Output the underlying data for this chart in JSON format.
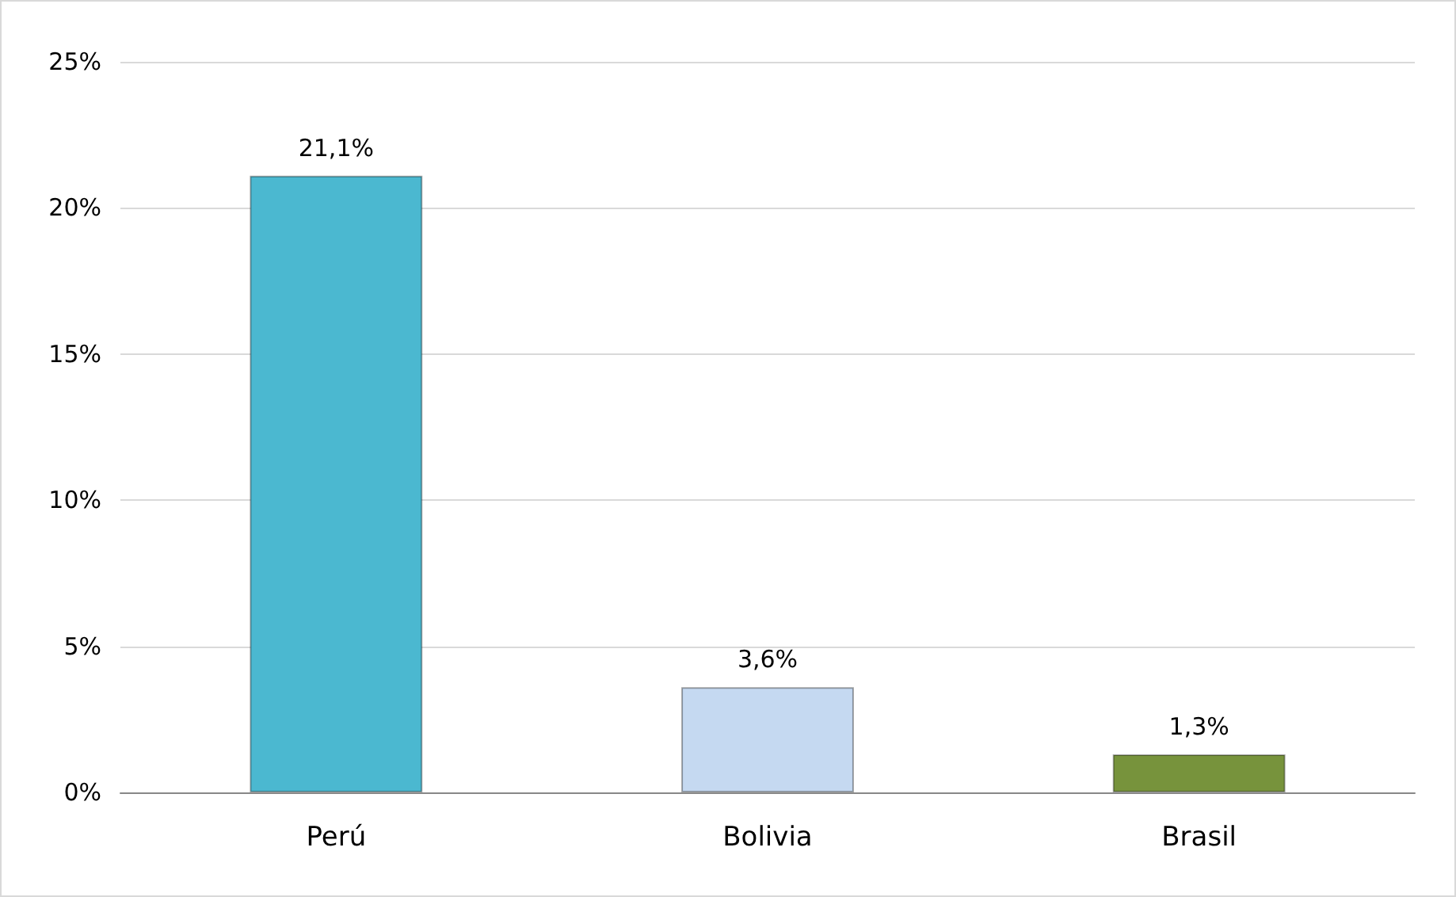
{
  "chart_data": {
    "type": "bar",
    "categories": [
      "Perú",
      "Bolivia",
      "Brasil"
    ],
    "values": [
      21.1,
      3.6,
      1.3
    ],
    "colors": [
      "#4bb8d0",
      "#c5d9f1",
      "#77933c"
    ],
    "value_labels": [
      "21,1%",
      "3,6%",
      "1,3%"
    ],
    "ylim": [
      0,
      25
    ],
    "yticks": [
      {
        "value": 0,
        "label": "0%"
      },
      {
        "value": 5,
        "label": "5%"
      },
      {
        "value": 10,
        "label": "10%"
      },
      {
        "value": 15,
        "label": "15%"
      },
      {
        "value": 20,
        "label": "20%"
      },
      {
        "value": 25,
        "label": "25%"
      }
    ],
    "grid": "y"
  }
}
